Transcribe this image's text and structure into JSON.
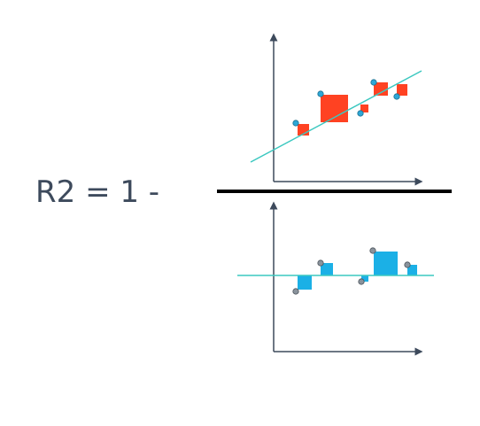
{
  "formula": "R2 = 1 -"
}
